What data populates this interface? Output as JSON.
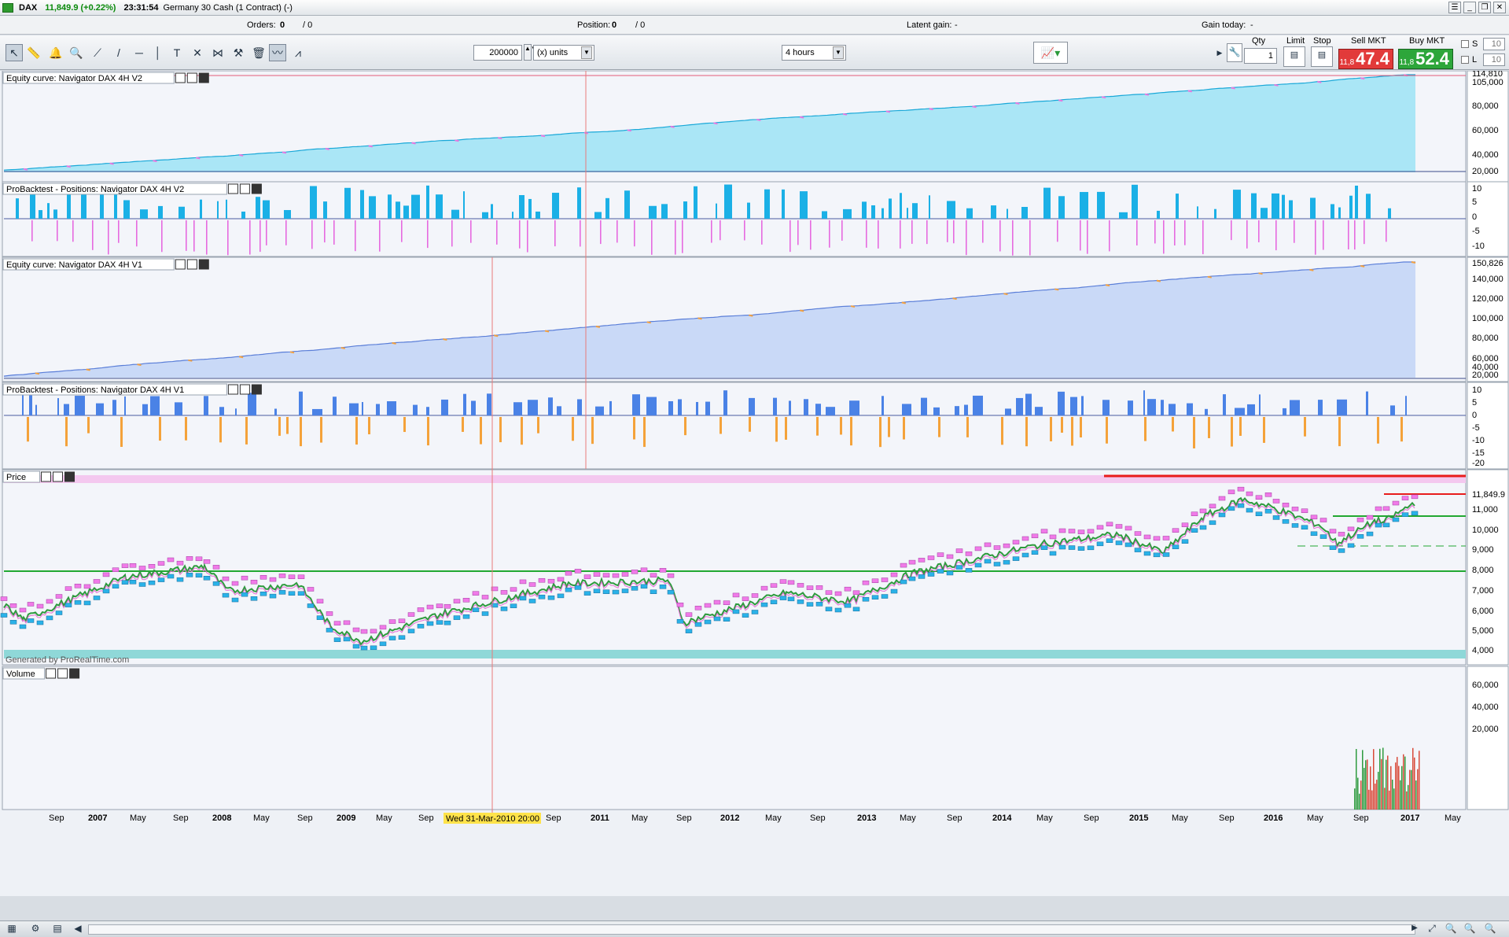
{
  "window": {
    "symbol": "DAX",
    "price_change": "11,849.9 (+0.22%)",
    "time": "23:31:54",
    "instrument": "Germany 30 Cash (1 Contract) (-)"
  },
  "status": {
    "orders_label": "Orders:",
    "orders_value": "0",
    "orders_value2": "/ 0",
    "position_label": "Position:",
    "position_value": "0",
    "position_value2": "/ 0",
    "latent_label": "Latent gain:",
    "latent_value": "-",
    "gain_label": "Gain today:",
    "gain_value": "-"
  },
  "toolbar": {
    "quantity": "200000",
    "units": "(x) units",
    "timeframe": "4 hours",
    "qty_label": "Qty",
    "qty_value": "1",
    "limit_label": "Limit",
    "stop_label": "Stop",
    "sell_label": "Sell MKT",
    "buy_label": "Buy MKT",
    "sell_small": "11,8",
    "sell_big": "47.4",
    "buy_small": "11,8",
    "buy_big": "52.4",
    "s_label": "S",
    "s_value": "10",
    "l_label": "L",
    "l_value": "10"
  },
  "panels": {
    "eq_v2_title": "Equity curve: Navigator DAX 4H V2",
    "pos_v2_title": "ProBacktest - Positions: Navigator DAX 4H V2",
    "eq_v1_title": "Equity curve: Navigator DAX 4H V1",
    "pos_v1_title": "ProBacktest - Positions: Navigator DAX 4H V1",
    "price_title": "Price",
    "volume_title": "Volume",
    "watermark": "Generated by ProRealTime.com",
    "cursor_date": "Wed 31-Mar-2010 20:00"
  },
  "axes": {
    "eq_v2": [
      "114,810",
      "105,000",
      "80,000",
      "60,000",
      "40,000",
      "20,000"
    ],
    "pos_v2": [
      "10",
      "5",
      "0",
      "-5",
      "-10"
    ],
    "eq_v1": [
      "150,826",
      "140,000",
      "120,000",
      "100,000",
      "80,000",
      "60,000",
      "40,000",
      "20,000"
    ],
    "pos_v1": [
      "10",
      "5",
      "0",
      "-5",
      "-10",
      "-15",
      "-20"
    ],
    "price": [
      "11,849.9",
      "11,000",
      "10,000",
      "9,000",
      "8,000",
      "7,000",
      "6,000",
      "5,000",
      "4,000"
    ],
    "volume": [
      "60,000",
      "40,000",
      "20,000"
    ],
    "time": [
      "Sep",
      "2007",
      "May",
      "Sep",
      "2008",
      "May",
      "Sep",
      "2009",
      "May",
      "Sep",
      "2010",
      "Sep",
      "2011",
      "May",
      "Sep",
      "2012",
      "May",
      "Sep",
      "2013",
      "May",
      "Sep",
      "2014",
      "May",
      "Sep",
      "2015",
      "May",
      "Sep",
      "2016",
      "May",
      "Sep",
      "2017",
      "May"
    ]
  },
  "colors": {
    "eq_v2_fill": "#aae6f6",
    "eq_v2_line": "#19a8d8",
    "eq_v2_draw": "#e779e0",
    "pos_long": "#1bb0e6",
    "pos_short": "#e66ae0",
    "eq_v1_fill": "#c9d9f7",
    "eq_v1_line": "#5a7ed8",
    "eq_v1_draw": "#f2a040",
    "pos_v1_long": "#4a82e6",
    "pos_v1_short": "#f4a23a",
    "price_line": "#2e9a3e",
    "support": "#22a832",
    "resistance": "#e81c1c"
  }
}
